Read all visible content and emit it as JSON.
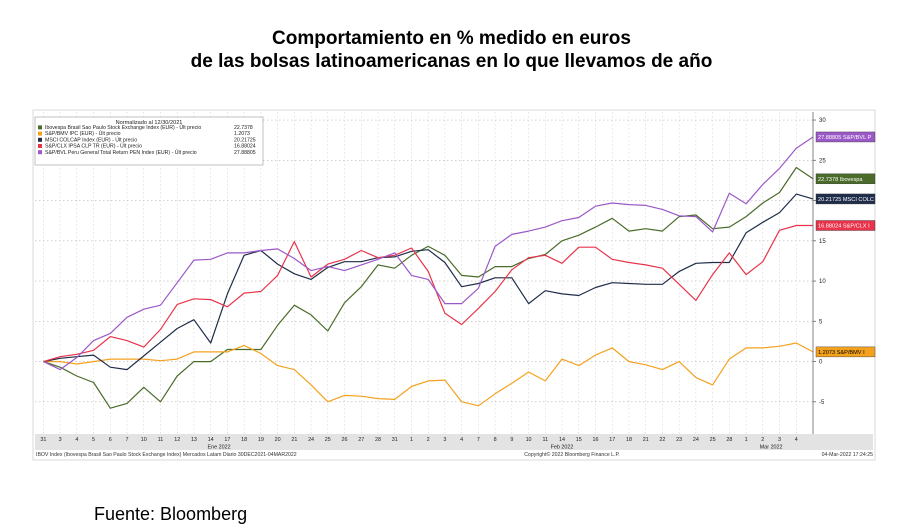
{
  "header": {
    "title_line1": "Comportamiento en % medido en euros",
    "title_line2": "de las bolsas latinoamericanas en lo que llevamos de año"
  },
  "footer": {
    "source": "Fuente: Bloomberg",
    "ticker": "IBOV Index (Ibovespa Brasil Sao Paulo Stock Exchange Index) Mercados Latam  Diario 30DEC2021-04MAR2022",
    "copyright": "Copyright© 2022 Bloomberg Finance L.P.",
    "timestamp": "04-Mar-2022 17:24:25"
  },
  "chart_data": {
    "type": "line",
    "legend_header": "Normalizado al 12/30/2021",
    "legend_position": "top-left",
    "x_ticks": [
      "31",
      "3",
      "4",
      "5",
      "6",
      "7",
      "10",
      "11",
      "12",
      "13",
      "14",
      "17",
      "18",
      "19",
      "20",
      "21",
      "24",
      "25",
      "26",
      "27",
      "28",
      "31",
      "1",
      "2",
      "3",
      "4",
      "7",
      "8",
      "9",
      "10",
      "11",
      "14",
      "15",
      "16",
      "17",
      "18",
      "21",
      "22",
      "23",
      "24",
      "25",
      "28",
      "1",
      "2",
      "3",
      "4"
    ],
    "month_labels": [
      {
        "label": "Ene 2022",
        "index": 10.5
      },
      {
        "label": "Feb 2022",
        "index": 31
      },
      {
        "label": "Mar 2022",
        "index": 43.5
      }
    ],
    "y_ticks": [
      30,
      25,
      20,
      15,
      10,
      5,
      0,
      -5
    ],
    "y_tick_labels": [
      "30",
      "25",
      "20",
      "15",
      "10",
      "5",
      "0",
      "-5"
    ],
    "ylim": [
      -9,
      31
    ],
    "xlim": [
      -0.5,
      46
    ],
    "series": [
      {
        "name": "Ibovespa Brasil Sao Paulo Stock Exchange Index (EUR) - Últ precio",
        "last": "22.7378",
        "tag": "22.7378  Ibovespa",
        "color": "#4a6b2a",
        "values": [
          0,
          -0.7,
          -1.8,
          -2.6,
          -5.8,
          -5.2,
          -3.2,
          -5.0,
          -1.8,
          0,
          0,
          1.5,
          1.5,
          1.5,
          4.5,
          7.0,
          5.8,
          3.8,
          7.3,
          9.3,
          12.0,
          11.6,
          13.2,
          14.3,
          13.2,
          10.7,
          10.5,
          11.8,
          11.8,
          12.8,
          13.3,
          15.0,
          15.7,
          16.7,
          17.8,
          16.2,
          16.5,
          16.2,
          18.0,
          18.2,
          16.5,
          16.7,
          18.0,
          19.7,
          21.0,
          24.1,
          22.7
        ]
      },
      {
        "name": "S&P/BMV IPC (EUR) - Últ precio",
        "last": "1.2073",
        "tag": "1.2073    S&P/BMV I",
        "color": "#f4a21e",
        "values": [
          0,
          0,
          -0.3,
          0,
          0.3,
          0.3,
          0.3,
          0.1,
          0.3,
          1.2,
          1.2,
          1.2,
          2.0,
          1.0,
          -0.5,
          -1.0,
          -2.9,
          -5.0,
          -4.2,
          -4.3,
          -4.6,
          -4.7,
          -3.1,
          -2.4,
          -2.3,
          -5.0,
          -5.5,
          -4.0,
          -2.7,
          -1.3,
          -2.4,
          0.3,
          -0.5,
          0.8,
          1.7,
          0,
          -0.4,
          -1.0,
          0,
          -2.0,
          -2.9,
          0.3,
          1.7,
          1.7,
          1.9,
          2.3,
          1.2
        ]
      },
      {
        "name": "MSCI COLCAP Index (EUR) - Últ precio",
        "last": "20.21725",
        "tag": "20.21725 MSCI COLC",
        "color": "#1f2d4a",
        "values": [
          0,
          0.4,
          0.6,
          0.8,
          -0.7,
          -1.0,
          0.7,
          2.4,
          4.1,
          5.2,
          2.3,
          8.4,
          13.2,
          13.8,
          12.1,
          10.9,
          10.2,
          11.7,
          12.4,
          12.4,
          12.9,
          13.0,
          13.7,
          13.9,
          12.3,
          9.3,
          9.7,
          10.4,
          10.4,
          7.2,
          8.8,
          8.4,
          8.2,
          9.2,
          9.8,
          9.7,
          9.6,
          9.6,
          11.2,
          12.2,
          12.3,
          12.3,
          16.0,
          17.3,
          18.5,
          20.8,
          20.2
        ]
      },
      {
        "name": "S&P/CLX IPSA CLP TR (EUR) - Últ precio",
        "last": "16.88024",
        "tag": "16.88024 S&P/CLX I",
        "color": "#e8334a",
        "values": [
          0,
          0.6,
          0.9,
          1.4,
          3.1,
          2.6,
          1.8,
          4.0,
          7.1,
          7.8,
          7.7,
          6.8,
          8.5,
          8.7,
          10.7,
          14.9,
          10.5,
          12.1,
          12.7,
          13.8,
          12.9,
          13.2,
          14.1,
          11.2,
          6.0,
          4.6,
          6.6,
          8.7,
          11.4,
          12.9,
          13.2,
          12.2,
          14.2,
          14.2,
          12.7,
          12.3,
          12.0,
          11.6,
          9.6,
          7.6,
          10.8,
          13.5,
          10.8,
          12.4,
          16.3,
          16.9,
          16.9
        ]
      },
      {
        "name": "S&P/BVL Peru General Total Return PEN Index (EUR) - Últ precio",
        "last": "27.88805",
        "tag": "27.88805 S&P/BVL P",
        "color": "#9b59c7",
        "values": [
          0,
          -1.0,
          0.5,
          2.6,
          3.5,
          5.5,
          6.5,
          7.0,
          9.8,
          12.6,
          12.7,
          13.5,
          13.5,
          13.8,
          14.0,
          12.8,
          11.3,
          11.8,
          11.3,
          12.0,
          12.7,
          13.5,
          10.7,
          10.2,
          7.2,
          7.2,
          9.1,
          14.3,
          15.8,
          16.2,
          16.7,
          17.5,
          17.9,
          19.3,
          19.7,
          19.5,
          19.4,
          18.9,
          18.1,
          18.0,
          16.1,
          20.9,
          19.6,
          22.0,
          24.0,
          26.5,
          27.9
        ]
      }
    ]
  }
}
